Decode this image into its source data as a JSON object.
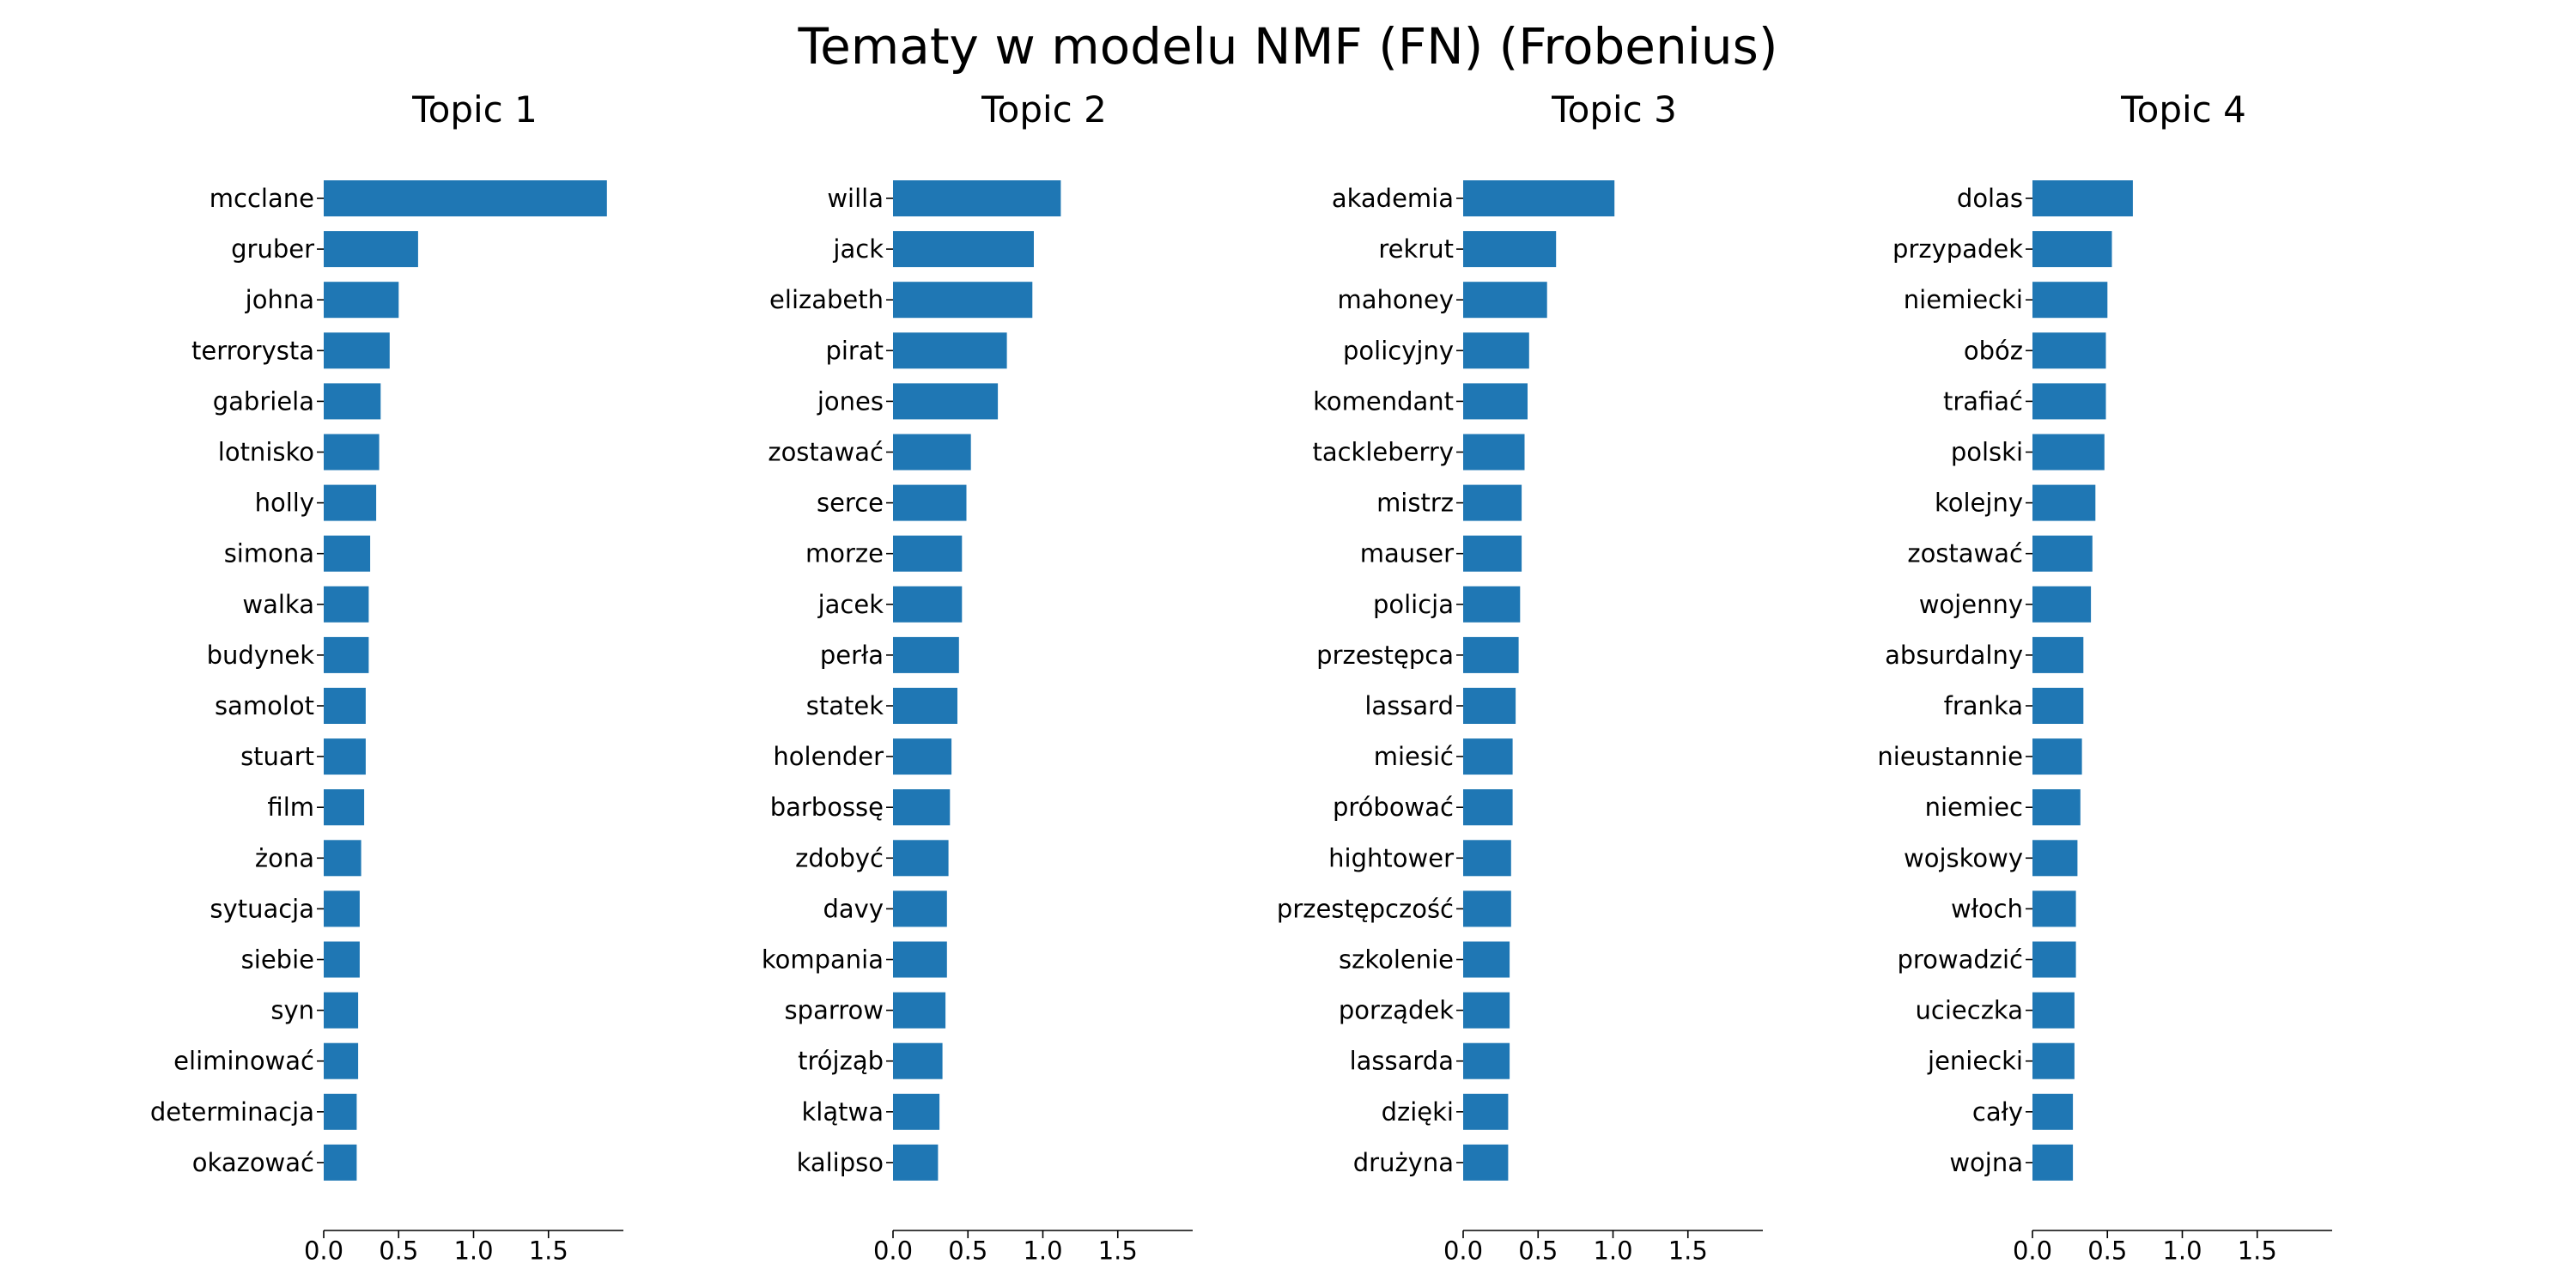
{
  "suptitle": "Tematy w modelu NMF (FN) (Frobenius)",
  "chart_data": [
    {
      "type": "bar",
      "orientation": "horizontal",
      "title": "Topic 1",
      "xlim": [
        0,
        2.0
      ],
      "xticks": [
        "0.0",
        "0.5",
        "1.0",
        "1.5"
      ],
      "categories": [
        "mcclane",
        "gruber",
        "johna",
        "terrorysta",
        "gabriela",
        "lotnisko",
        "holly",
        "simona",
        "walka",
        "budynek",
        "samolot",
        "stuart",
        "film",
        "żona",
        "sytuacja",
        "siebie",
        "syn",
        "eliminować",
        "determinacja",
        "okazować"
      ],
      "values": [
        1.89,
        0.63,
        0.5,
        0.44,
        0.38,
        0.37,
        0.35,
        0.31,
        0.3,
        0.3,
        0.28,
        0.28,
        0.27,
        0.25,
        0.24,
        0.24,
        0.23,
        0.23,
        0.22,
        0.22
      ],
      "color": "#1f77b4"
    },
    {
      "type": "bar",
      "orientation": "horizontal",
      "title": "Topic 2",
      "xlim": [
        0,
        2.0
      ],
      "xticks": [
        "0.0",
        "0.5",
        "1.0",
        "1.5"
      ],
      "categories": [
        "willa",
        "jack",
        "elizabeth",
        "pirat",
        "jones",
        "zostawać",
        "serce",
        "morze",
        "jacek",
        "perła",
        "statek",
        "holender",
        "barbossę",
        "zdobyć",
        "davy",
        "kompania",
        "sparrow",
        "trójząb",
        "klątwa",
        "kalipso"
      ],
      "values": [
        1.12,
        0.94,
        0.93,
        0.76,
        0.7,
        0.52,
        0.49,
        0.46,
        0.46,
        0.44,
        0.43,
        0.39,
        0.38,
        0.37,
        0.36,
        0.36,
        0.35,
        0.33,
        0.31,
        0.3
      ],
      "color": "#1f77b4"
    },
    {
      "type": "bar",
      "orientation": "horizontal",
      "title": "Topic 3",
      "xlim": [
        0,
        2.0
      ],
      "xticks": [
        "0.0",
        "0.5",
        "1.0",
        "1.5"
      ],
      "categories": [
        "akademia",
        "rekrut",
        "mahoney",
        "policyjny",
        "komendant",
        "tackleberry",
        "mistrz",
        "mauser",
        "policja",
        "przestępca",
        "lassard",
        "miesić",
        "próbować",
        "hightower",
        "przestępczość",
        "szkolenie",
        "porządek",
        "lassarda",
        "dzięki",
        "drużyna"
      ],
      "values": [
        1.01,
        0.62,
        0.56,
        0.44,
        0.43,
        0.41,
        0.39,
        0.39,
        0.38,
        0.37,
        0.35,
        0.33,
        0.33,
        0.32,
        0.32,
        0.31,
        0.31,
        0.31,
        0.3,
        0.3
      ],
      "color": "#1f77b4"
    },
    {
      "type": "bar",
      "orientation": "horizontal",
      "title": "Topic 4",
      "xlim": [
        0,
        2.0
      ],
      "xticks": [
        "0.0",
        "0.5",
        "1.0",
        "1.5"
      ],
      "categories": [
        "dolas",
        "przypadek",
        "niemiecki",
        "obóz",
        "trafiać",
        "polski",
        "kolejny",
        "zostawać",
        "wojenny",
        "absurdalny",
        "franka",
        "nieustannie",
        "niemiec",
        "wojskowy",
        "włoch",
        "prowadzić",
        "ucieczka",
        "jeniecki",
        "cały",
        "wojna"
      ],
      "values": [
        0.67,
        0.53,
        0.5,
        0.49,
        0.49,
        0.48,
        0.42,
        0.4,
        0.39,
        0.34,
        0.34,
        0.33,
        0.32,
        0.3,
        0.29,
        0.29,
        0.28,
        0.28,
        0.27,
        0.27
      ],
      "color": "#1f77b4"
    }
  ]
}
